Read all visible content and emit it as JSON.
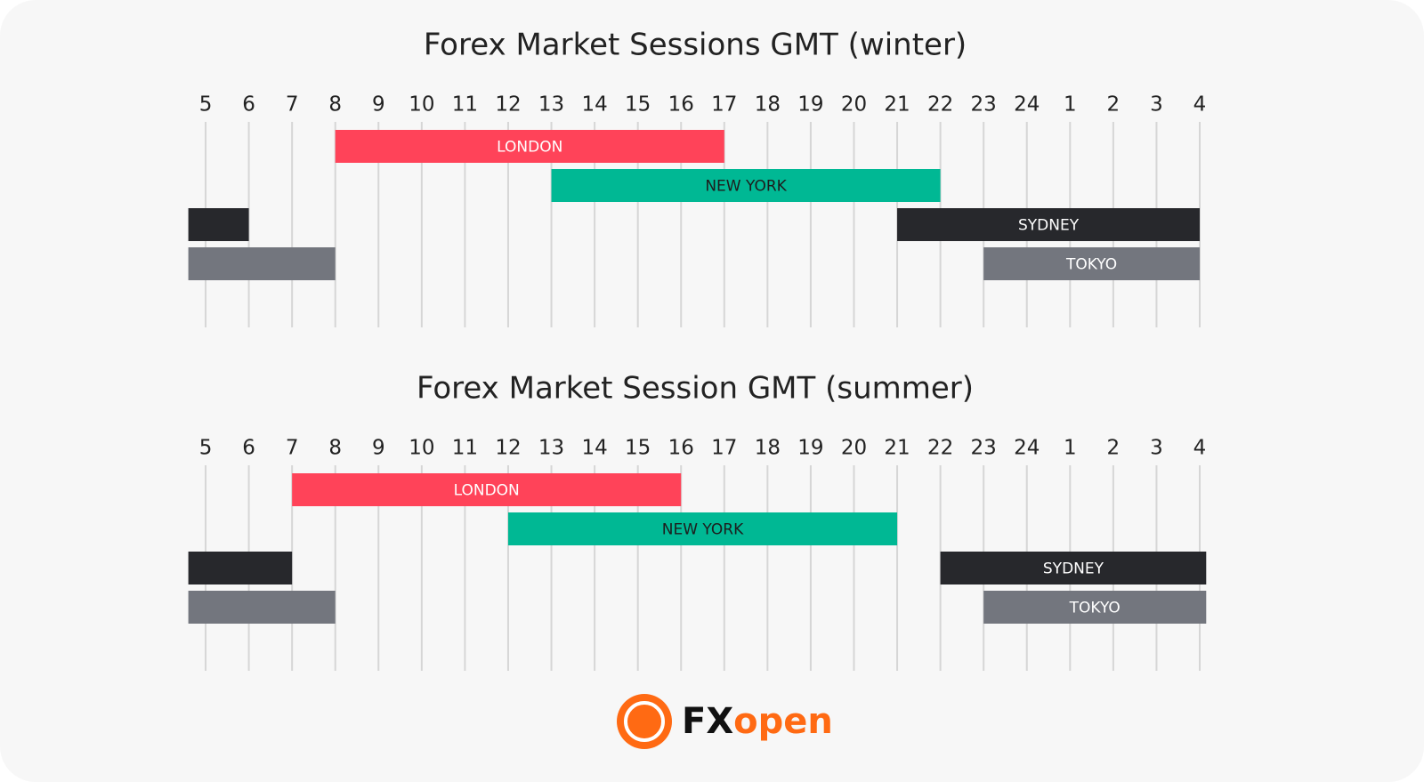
{
  "chart_data": [
    {
      "type": "gantt",
      "title": "Forex Market Sessions GMT (winter)",
      "xlim": [
        4.6,
        28
      ],
      "xticks": [
        5,
        6,
        7,
        8,
        9,
        10,
        11,
        12,
        13,
        14,
        15,
        16,
        17,
        18,
        19,
        20,
        21,
        22,
        23,
        24,
        {
          "value": 25,
          "label": "1"
        },
        {
          "value": 26,
          "label": "2"
        },
        {
          "value": 27,
          "label": "3"
        },
        {
          "value": 28,
          "label": "4"
        }
      ],
      "grid": true,
      "series": [
        {
          "name": "LONDON",
          "color": "#ff4359",
          "segments": [
            [
              8,
              17
            ]
          ]
        },
        {
          "name": "NEW YORK",
          "color": "#00b894",
          "segments": [
            [
              13,
              22
            ]
          ]
        },
        {
          "name": "SYDNEY",
          "color": "#27282c",
          "segments": [
            [
              4.6,
              6
            ],
            [
              21,
              28
            ]
          ]
        },
        {
          "name": "TOKYO",
          "color": "#73767e",
          "segments": [
            [
              4.6,
              8
            ],
            [
              23,
              28
            ]
          ]
        }
      ]
    },
    {
      "type": "gantt",
      "title": "Forex Market Session GMT (summer)",
      "xlim": [
        4.6,
        28
      ],
      "xticks": [
        5,
        6,
        7,
        8,
        9,
        10,
        11,
        12,
        13,
        14,
        15,
        16,
        17,
        18,
        19,
        20,
        21,
        22,
        23,
        24,
        {
          "value": 25,
          "label": "1"
        },
        {
          "value": 26,
          "label": "2"
        },
        {
          "value": 27,
          "label": "3"
        },
        {
          "value": 28,
          "label": "4"
        }
      ],
      "grid": true,
      "series": [
        {
          "name": "LONDON",
          "color": "#ff4359",
          "segments": [
            [
              7,
              16
            ]
          ]
        },
        {
          "name": "NEW YORK",
          "color": "#00b894",
          "segments": [
            [
              12,
              21
            ]
          ]
        },
        {
          "name": "SYDNEY",
          "color": "#27282c",
          "segments": [
            [
              4.6,
              7
            ],
            [
              22,
              28.15
            ]
          ]
        },
        {
          "name": "TOKYO",
          "color": "#73767e",
          "segments": [
            [
              4.6,
              8
            ],
            [
              23,
              28.15
            ]
          ]
        }
      ]
    }
  ],
  "logo": {
    "prefix": "FX",
    "suffix": "open"
  }
}
